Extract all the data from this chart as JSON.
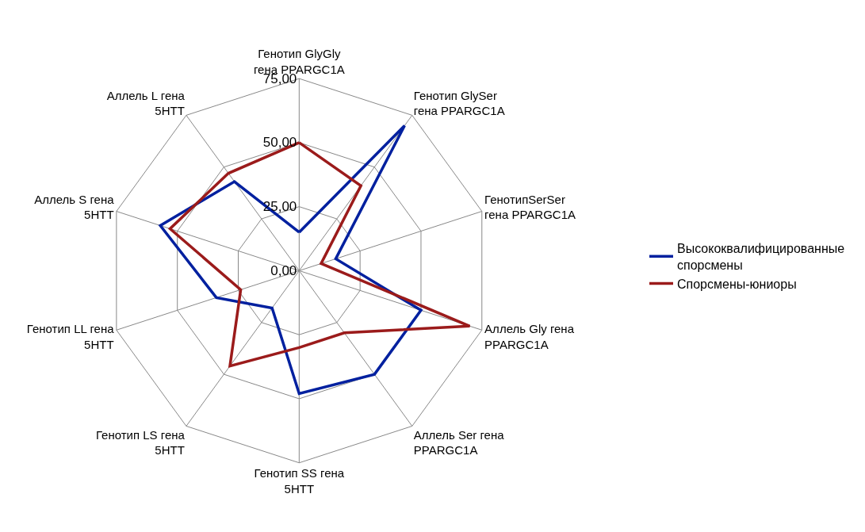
{
  "chart_data": {
    "type": "radar",
    "categories": [
      "Генотип GlyGly гена PPARGC1A",
      "Генотип GlySer гена PPARGC1A",
      "ГенотипSerSer гена PPARGC1A",
      "Аллель Gly гена PPARGC1A",
      "Аллель Ser гена PPARGC1A",
      "Генотип SS гена 5HTT",
      "Генотип LS гена 5HTT",
      "Генотип LL гена 5HTT",
      "Аллель S гена 5HTT",
      "Аллель L гена 5HTT"
    ],
    "series": [
      {
        "name": "Высококвалифицированные спорсмены",
        "color": "#00209f",
        "values": [
          15,
          70,
          15,
          50,
          50,
          48,
          18,
          34,
          57,
          43
        ]
      },
      {
        "name": "Спорсмены-юниоры",
        "color": "#9b1b1b",
        "values": [
          50,
          41,
          9,
          70,
          30,
          30,
          46,
          24,
          53,
          47
        ]
      }
    ],
    "ylim": [
      0,
      75
    ],
    "yticks": [
      {
        "value": 0,
        "label": "0,00"
      },
      {
        "value": 25,
        "label": "25,00"
      },
      {
        "value": 50,
        "label": "50,00"
      },
      {
        "value": 75,
        "label": "75,00"
      }
    ],
    "grid": true,
    "legend": "right",
    "marker": "none",
    "line_style": "solid"
  }
}
